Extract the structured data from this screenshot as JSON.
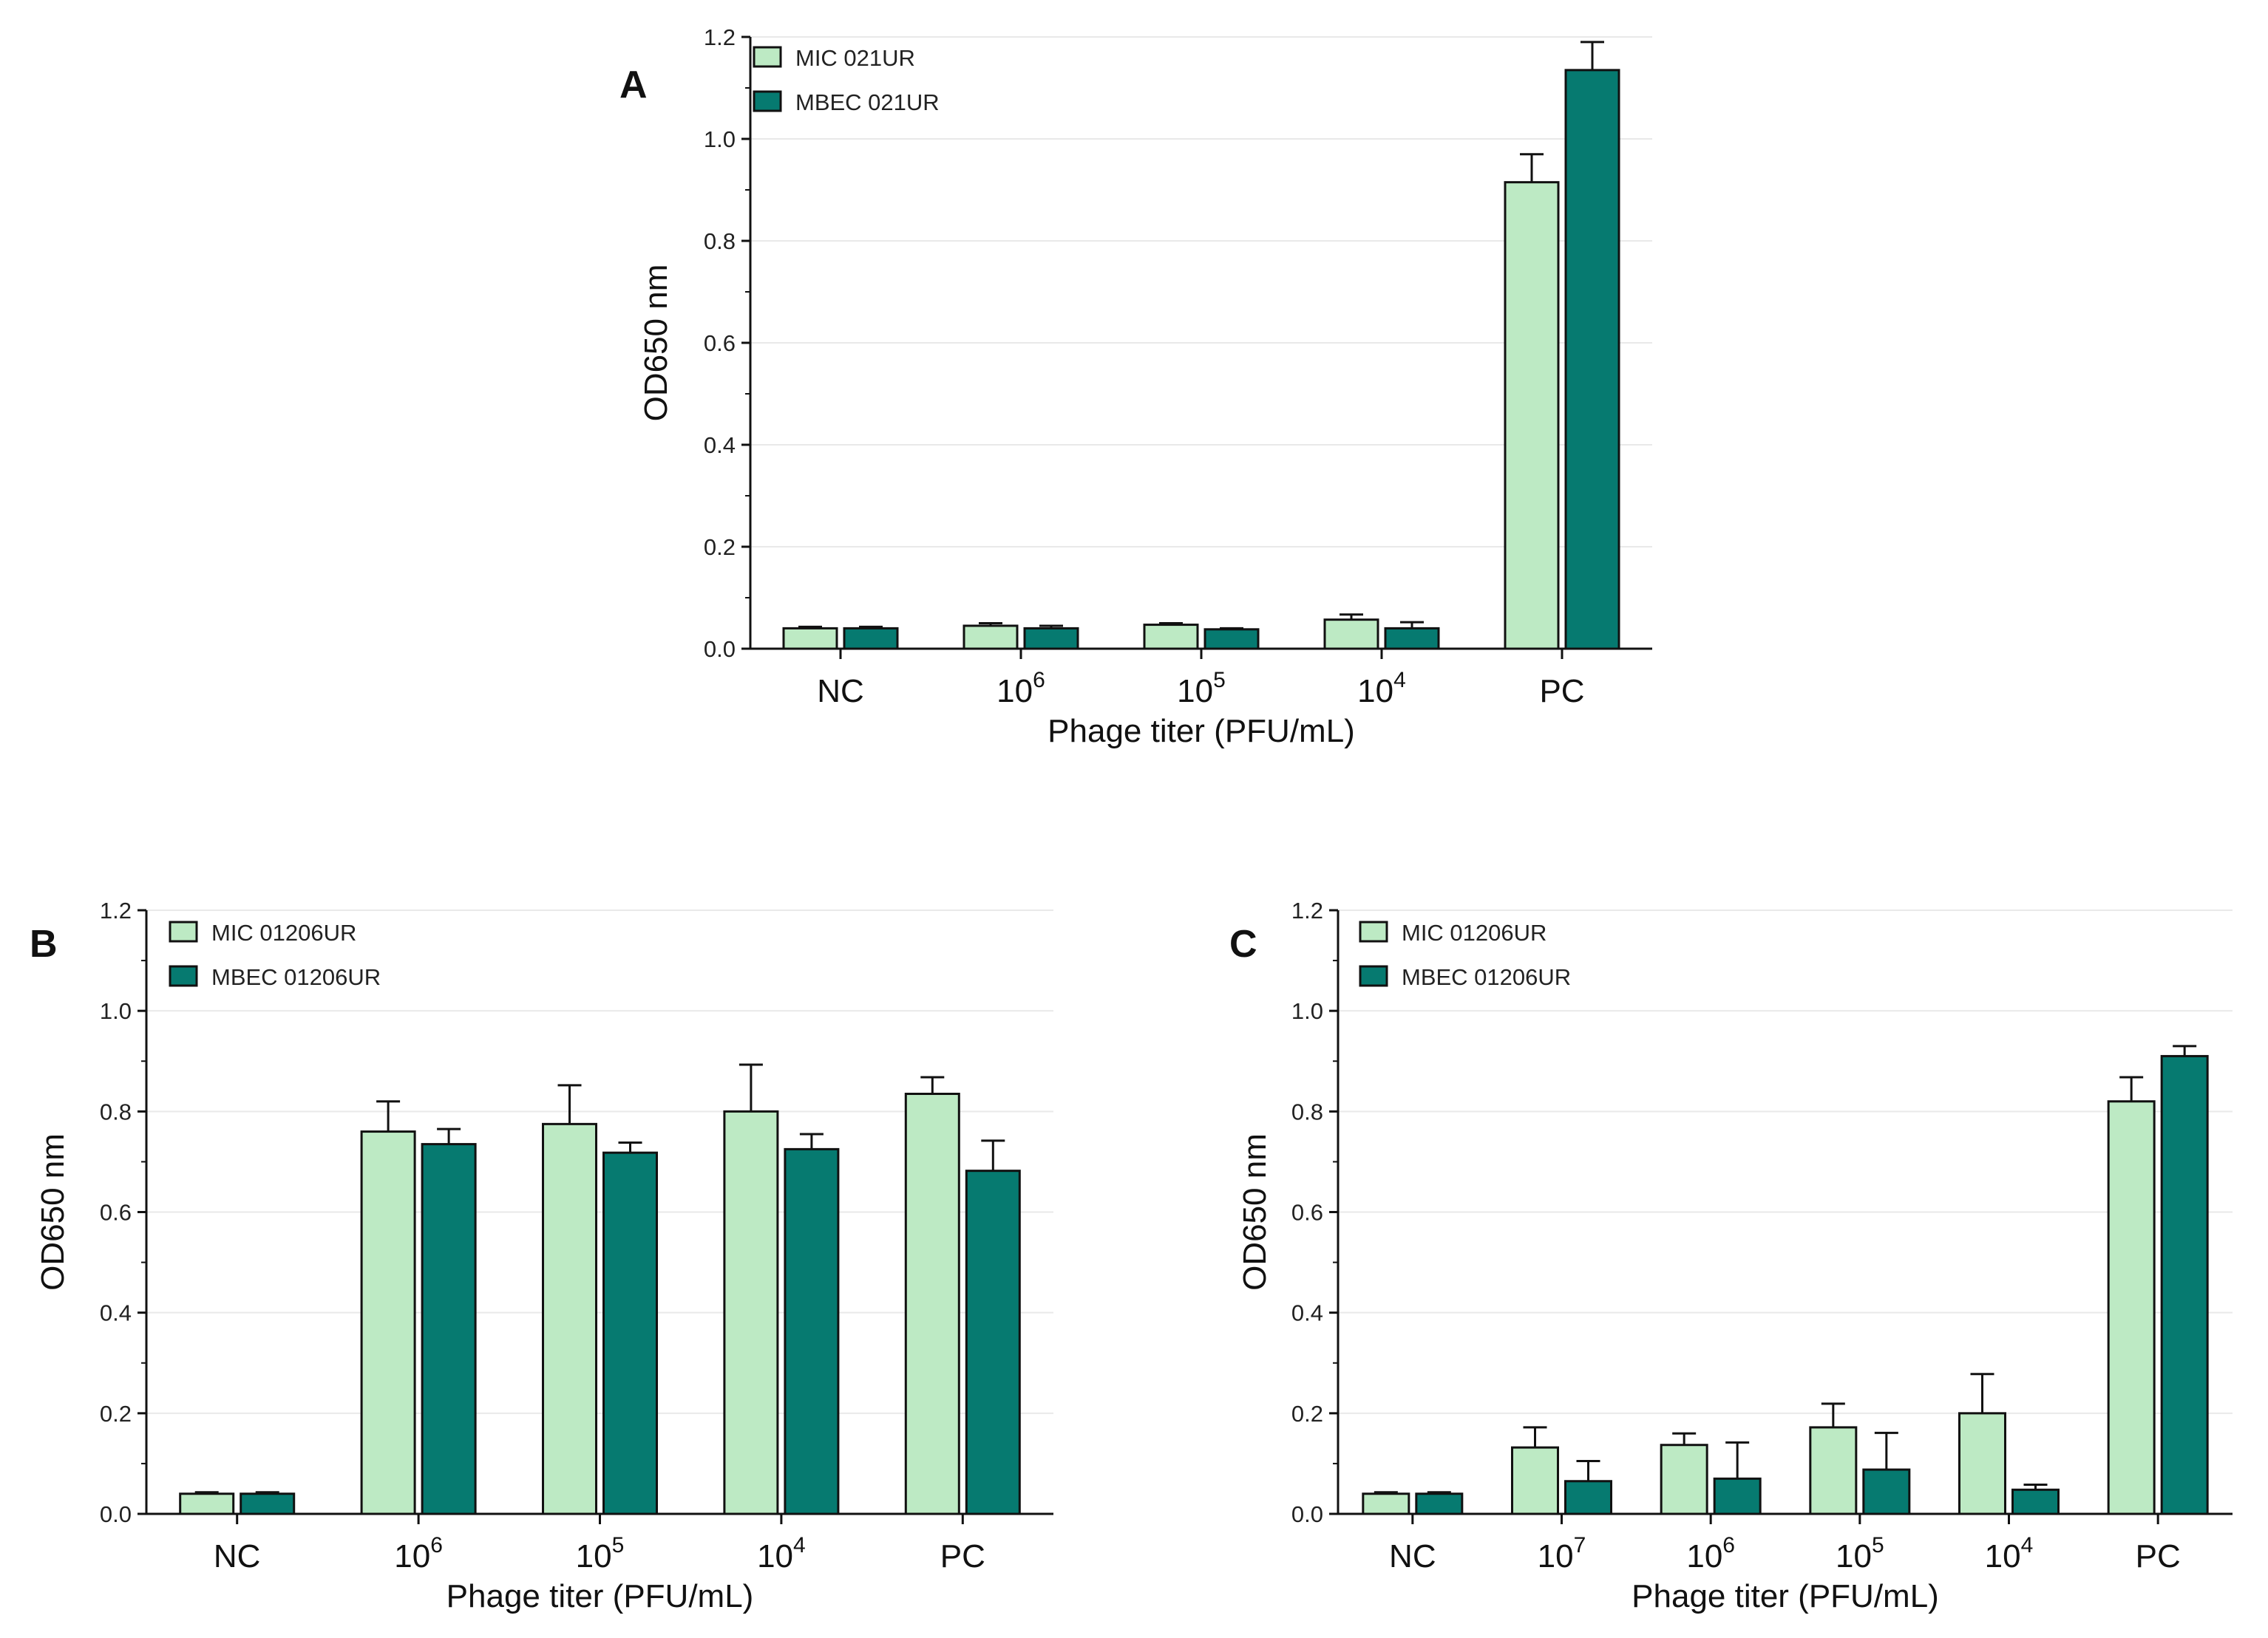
{
  "colors": {
    "mic": "#bdeac4",
    "mbec": "#067a70",
    "axis": "#111111",
    "grid": "#e9e9e9"
  },
  "chart_data": [
    {
      "panel": "A",
      "type": "bar",
      "categories": [
        {
          "base": "NC",
          "sup": ""
        },
        {
          "base": "10",
          "sup": "6"
        },
        {
          "base": "10",
          "sup": "5"
        },
        {
          "base": "10",
          "sup": "4"
        },
        {
          "base": "PC",
          "sup": ""
        }
      ],
      "series": [
        {
          "name": "MIC 021UR",
          "color_key": "mic",
          "values": [
            0.04,
            0.045,
            0.047,
            0.057,
            0.915
          ],
          "errors": [
            0.003,
            0.005,
            0.003,
            0.01,
            0.055
          ]
        },
        {
          "name": "MBEC 021UR",
          "color_key": "mbec",
          "values": [
            0.04,
            0.04,
            0.038,
            0.04,
            1.135
          ],
          "errors": [
            0.003,
            0.005,
            0.002,
            0.012,
            0.055
          ]
        }
      ],
      "xlabel": "Phage titer (PFU/mL)",
      "ylabel": "OD650 nm",
      "ylim": [
        0,
        1.2
      ],
      "yticks": [
        "0.0",
        "0.2",
        "0.4",
        "0.6",
        "0.8",
        "1.0",
        "1.2"
      ],
      "legend_position": "top-left",
      "grid": true
    },
    {
      "panel": "B",
      "type": "bar",
      "categories": [
        {
          "base": "NC",
          "sup": ""
        },
        {
          "base": "10",
          "sup": "6"
        },
        {
          "base": "10",
          "sup": "5"
        },
        {
          "base": "10",
          "sup": "4"
        },
        {
          "base": "PC",
          "sup": ""
        }
      ],
      "series": [
        {
          "name": "MIC 01206UR",
          "color_key": "mic",
          "values": [
            0.04,
            0.76,
            0.775,
            0.8,
            0.835
          ],
          "errors": [
            0.003,
            0.06,
            0.077,
            0.093,
            0.033
          ]
        },
        {
          "name": "MBEC 01206UR",
          "color_key": "mbec",
          "values": [
            0.04,
            0.735,
            0.718,
            0.725,
            0.682
          ],
          "errors": [
            0.003,
            0.03,
            0.02,
            0.03,
            0.06
          ]
        }
      ],
      "xlabel": "Phage titer (PFU/mL)",
      "ylabel": "OD650 nm",
      "ylim": [
        0,
        1.2
      ],
      "yticks": [
        "0.0",
        "0.2",
        "0.4",
        "0.6",
        "0.8",
        "1.0",
        "1.2"
      ],
      "legend_position": "top-left",
      "grid": true
    },
    {
      "panel": "C",
      "type": "bar",
      "categories": [
        {
          "base": "NC",
          "sup": ""
        },
        {
          "base": "10",
          "sup": "7"
        },
        {
          "base": "10",
          "sup": "6"
        },
        {
          "base": "10",
          "sup": "5"
        },
        {
          "base": "10",
          "sup": "4"
        },
        {
          "base": "PC",
          "sup": ""
        }
      ],
      "series": [
        {
          "name": "MIC 01206UR",
          "color_key": "mic",
          "values": [
            0.04,
            0.132,
            0.137,
            0.172,
            0.2,
            0.82
          ],
          "errors": [
            0.003,
            0.04,
            0.023,
            0.047,
            0.078,
            0.048
          ]
        },
        {
          "name": "MBEC 01206UR",
          "color_key": "mbec",
          "values": [
            0.04,
            0.065,
            0.07,
            0.088,
            0.048,
            0.91
          ],
          "errors": [
            0.003,
            0.04,
            0.072,
            0.073,
            0.01,
            0.02
          ]
        }
      ],
      "xlabel": "Phage titer (PFU/mL)",
      "ylabel": "OD650 nm",
      "ylim": [
        0,
        1.2
      ],
      "yticks": [
        "0.0",
        "0.2",
        "0.4",
        "0.6",
        "0.8",
        "1.0",
        "1.2"
      ],
      "legend_position": "top-left",
      "grid": true
    }
  ]
}
